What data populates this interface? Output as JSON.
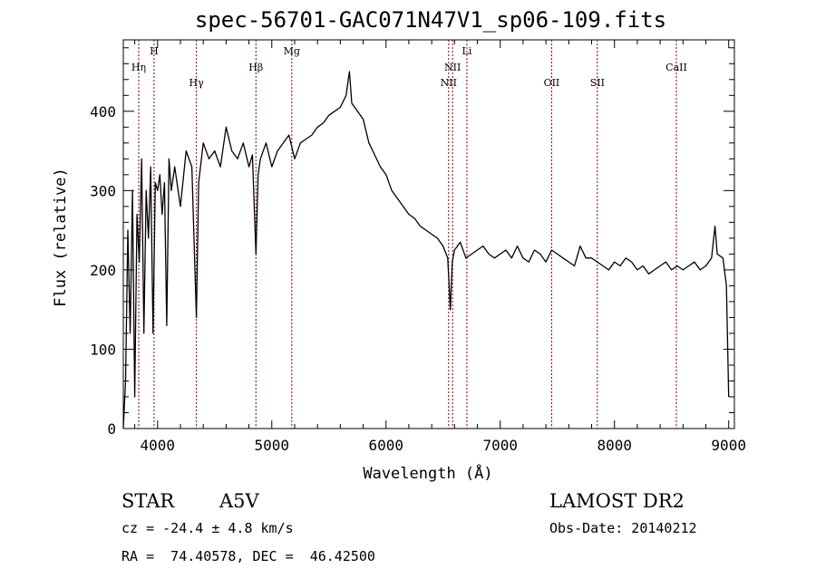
{
  "chart_data": {
    "type": "line",
    "title": "spec-56701-GAC071N47V1_sp06-109.fits",
    "xlabel": "Wavelength (Å)",
    "ylabel": "Flux (relative)",
    "xlim": [
      3700,
      9050
    ],
    "ylim": [
      0,
      490
    ],
    "xticks": [
      4000,
      5000,
      6000,
      7000,
      8000,
      9000
    ],
    "yticks": [
      0,
      100,
      200,
      300,
      400
    ],
    "xtick_labels": [
      "4000",
      "5000",
      "6000",
      "7000",
      "8000",
      "9000"
    ],
    "ytick_labels": [
      "0",
      "100",
      "200",
      "300",
      "400"
    ],
    "grid": false,
    "line_color": "#000000",
    "marker_color": "#8b0000",
    "series": [
      {
        "x": [
          3700,
          3720,
          3740,
          3760,
          3780,
          3800,
          3820,
          3840,
          3860,
          3880,
          3900,
          3920,
          3940,
          3960,
          3980,
          4000,
          4020,
          4040,
          4060,
          4080,
          4100,
          4120,
          4150,
          4200,
          4250,
          4300,
          4340,
          4360,
          4400,
          4450,
          4500,
          4550,
          4600,
          4650,
          4700,
          4750,
          4800,
          4830,
          4861,
          4880,
          4900,
          4950,
          5000,
          5050,
          5100,
          5150,
          5200,
          5250,
          5300,
          5350,
          5400,
          5450,
          5500,
          5550,
          5600,
          5650,
          5680,
          5700,
          5750,
          5800,
          5850,
          5900,
          5950,
          6000,
          6050,
          6100,
          6150,
          6200,
          6250,
          6300,
          6350,
          6400,
          6450,
          6500,
          6540,
          6563,
          6580,
          6600,
          6650,
          6700,
          6750,
          6800,
          6850,
          6900,
          6950,
          7000,
          7050,
          7100,
          7150,
          7200,
          7250,
          7300,
          7350,
          7400,
          7450,
          7500,
          7550,
          7600,
          7650,
          7700,
          7750,
          7800,
          7850,
          7900,
          7950,
          8000,
          8050,
          8100,
          8150,
          8200,
          8250,
          8300,
          8350,
          8400,
          8450,
          8500,
          8550,
          8600,
          8650,
          8700,
          8750,
          8800,
          8850,
          8880,
          8900,
          8950,
          8980,
          9000
        ],
        "y": [
          0,
          60,
          250,
          120,
          300,
          40,
          270,
          210,
          340,
          120,
          300,
          240,
          330,
          120,
          310,
          300,
          320,
          270,
          310,
          130,
          340,
          300,
          330,
          280,
          350,
          330,
          140,
          310,
          360,
          340,
          350,
          330,
          380,
          350,
          340,
          360,
          330,
          345,
          220,
          320,
          340,
          360,
          330,
          350,
          360,
          370,
          340,
          360,
          365,
          370,
          380,
          385,
          395,
          400,
          405,
          420,
          450,
          410,
          400,
          390,
          360,
          345,
          330,
          320,
          300,
          290,
          280,
          270,
          265,
          255,
          250,
          245,
          240,
          230,
          215,
          150,
          210,
          225,
          235,
          215,
          220,
          225,
          230,
          220,
          215,
          220,
          225,
          215,
          230,
          215,
          210,
          225,
          220,
          210,
          225,
          220,
          215,
          210,
          205,
          230,
          215,
          215,
          210,
          205,
          200,
          210,
          205,
          215,
          210,
          200,
          205,
          195,
          200,
          205,
          210,
          200,
          205,
          200,
          205,
          210,
          200,
          205,
          215,
          255,
          220,
          215,
          180,
          40
        ]
      }
    ],
    "line_markers": [
      {
        "label": "Hη",
        "wavelength": 3835,
        "row": 1
      },
      {
        "label": "H",
        "wavelength": 3969,
        "row": 0
      },
      {
        "label": "Hγ",
        "wavelength": 4340,
        "row": 2
      },
      {
        "label": "Hβ",
        "wavelength": 4861,
        "row": 1
      },
      {
        "label": "Mg",
        "wavelength": 5175,
        "row": 0
      },
      {
        "label": "NII",
        "wavelength": 6548,
        "row": 2
      },
      {
        "label": "NII",
        "wavelength": 6583,
        "row": 1
      },
      {
        "label": "Li",
        "wavelength": 6708,
        "row": 0
      },
      {
        "label": "OII",
        "wavelength": 7450,
        "row": 2
      },
      {
        "label": "SII",
        "wavelength": 7850,
        "row": 2
      },
      {
        "label": "CaII",
        "wavelength": 8542,
        "row": 1
      }
    ]
  },
  "info": {
    "star_label": "STAR",
    "spectral_type": "A5V",
    "cz": "cz = -24.4 ± 4.8 km/s",
    "radec": "RA =  74.40578, DEC =  46.42500",
    "survey": "LAMOST DR2",
    "obs_date": "Obs-Date: 20140212"
  }
}
